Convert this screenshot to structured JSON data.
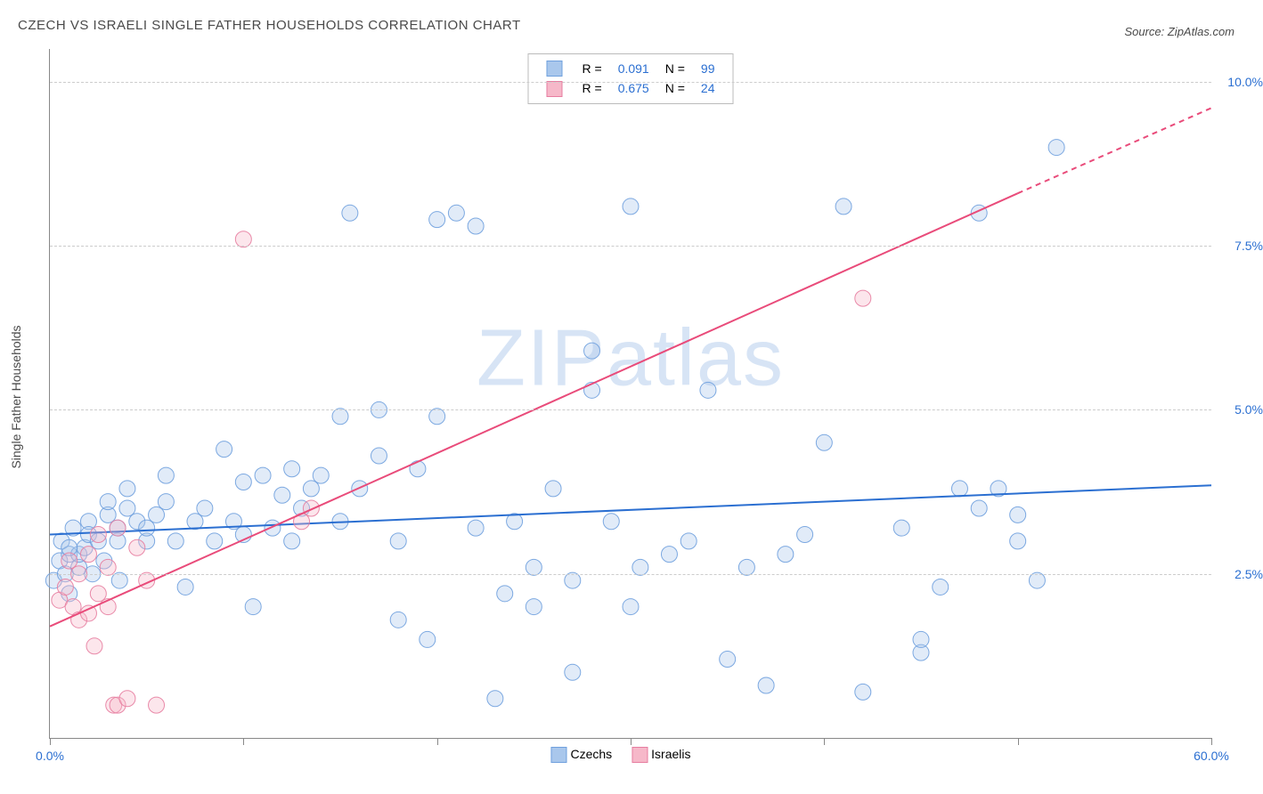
{
  "title": "CZECH VS ISRAELI SINGLE FATHER HOUSEHOLDS CORRELATION CHART",
  "source_label": "Source: ZipAtlas.com",
  "ylabel": "Single Father Households",
  "chart": {
    "type": "scatter",
    "xlim": [
      0,
      60
    ],
    "ylim": [
      0,
      10.5
    ],
    "x_tick_start": 0,
    "x_tick_end": 60,
    "y_ticks": [
      2.5,
      5.0,
      7.5,
      10.0
    ],
    "y_tick_labels": [
      "2.5%",
      "5.0%",
      "7.5%",
      "10.0%"
    ],
    "x_end_labels": [
      "0.0%",
      "60.0%"
    ],
    "x_minor_ticks": [
      0,
      10,
      20,
      30,
      40,
      50,
      60
    ],
    "axis_label_color": "#2b6fd1",
    "grid_color": "#cccccc",
    "background_color": "#ffffff",
    "marker_radius": 9,
    "marker_fill_opacity": 0.35,
    "marker_stroke_opacity": 0.9,
    "marker_stroke_width": 1,
    "line_width": 2,
    "title_fontsize": 15,
    "label_fontsize": 14,
    "watermark_text": "ZIPatlas",
    "watermark_color": "#b7cfee",
    "watermark_opacity": 0.55,
    "series": [
      {
        "name": "Czechs",
        "color_fill": "#a9c7ec",
        "color_stroke": "#6fa0de",
        "line_color": "#2b6fd1",
        "R": "0.091",
        "N": "99",
        "trend": {
          "x1": 0,
          "y1": 3.1,
          "x2": 60,
          "y2": 3.85
        },
        "points": [
          [
            0.2,
            2.4
          ],
          [
            0.5,
            2.7
          ],
          [
            0.6,
            3.0
          ],
          [
            0.8,
            2.5
          ],
          [
            1.0,
            2.8
          ],
          [
            1.0,
            2.2
          ],
          [
            1.2,
            3.2
          ],
          [
            1.5,
            2.6
          ],
          [
            1.5,
            2.8
          ],
          [
            1.8,
            2.9
          ],
          [
            2.0,
            3.3
          ],
          [
            2.0,
            3.1
          ],
          [
            2.2,
            2.5
          ],
          [
            2.5,
            3.0
          ],
          [
            2.8,
            2.7
          ],
          [
            3.0,
            3.4
          ],
          [
            3.0,
            3.6
          ],
          [
            3.5,
            3.0
          ],
          [
            3.5,
            3.2
          ],
          [
            3.6,
            2.4
          ],
          [
            4.0,
            3.5
          ],
          [
            4.0,
            3.8
          ],
          [
            4.5,
            3.3
          ],
          [
            5.0,
            3.0
          ],
          [
            5.0,
            3.2
          ],
          [
            5.5,
            3.4
          ],
          [
            6.0,
            3.6
          ],
          [
            6.0,
            4.0
          ],
          [
            6.5,
            3.0
          ],
          [
            7.0,
            2.3
          ],
          [
            7.5,
            3.3
          ],
          [
            8.0,
            3.5
          ],
          [
            8.5,
            3.0
          ],
          [
            9.0,
            4.4
          ],
          [
            9.5,
            3.3
          ],
          [
            10.0,
            3.1
          ],
          [
            10.0,
            3.9
          ],
          [
            10.5,
            2.0
          ],
          [
            11.0,
            4.0
          ],
          [
            11.5,
            3.2
          ],
          [
            12.0,
            3.7
          ],
          [
            12.5,
            3.0
          ],
          [
            12.5,
            4.1
          ],
          [
            13.0,
            3.5
          ],
          [
            13.5,
            3.8
          ],
          [
            14.0,
            4.0
          ],
          [
            15.0,
            4.9
          ],
          [
            15.0,
            3.3
          ],
          [
            15.5,
            8.0
          ],
          [
            16.0,
            3.8
          ],
          [
            17.0,
            4.3
          ],
          [
            17.0,
            5.0
          ],
          [
            18.0,
            1.8
          ],
          [
            18.0,
            3.0
          ],
          [
            19.0,
            4.1
          ],
          [
            19.5,
            1.5
          ],
          [
            20.0,
            4.9
          ],
          [
            20.0,
            7.9
          ],
          [
            21.0,
            8.0
          ],
          [
            22.0,
            7.8
          ],
          [
            22.0,
            3.2
          ],
          [
            23.0,
            0.6
          ],
          [
            23.5,
            2.2
          ],
          [
            24.0,
            3.3
          ],
          [
            25.0,
            2.0
          ],
          [
            25.0,
            2.6
          ],
          [
            26.0,
            3.8
          ],
          [
            27.0,
            1.0
          ],
          [
            27.0,
            2.4
          ],
          [
            28.0,
            5.9
          ],
          [
            28.0,
            5.3
          ],
          [
            29.0,
            3.3
          ],
          [
            30.0,
            2.0
          ],
          [
            30.0,
            8.1
          ],
          [
            30.5,
            2.6
          ],
          [
            32.0,
            2.8
          ],
          [
            33.0,
            3.0
          ],
          [
            34.0,
            5.3
          ],
          [
            35.0,
            1.2
          ],
          [
            36.0,
            2.6
          ],
          [
            37.0,
            0.8
          ],
          [
            38.0,
            2.8
          ],
          [
            39.0,
            3.1
          ],
          [
            40.0,
            4.5
          ],
          [
            41.0,
            8.1
          ],
          [
            42.0,
            0.7
          ],
          [
            44.0,
            3.2
          ],
          [
            45.0,
            1.3
          ],
          [
            45.0,
            1.5
          ],
          [
            46.0,
            2.3
          ],
          [
            47.0,
            3.8
          ],
          [
            48.0,
            3.5
          ],
          [
            49.0,
            3.8
          ],
          [
            50.0,
            3.0
          ],
          [
            50.0,
            3.4
          ],
          [
            51.0,
            2.4
          ],
          [
            52.0,
            9.0
          ],
          [
            48.0,
            8.0
          ],
          [
            1.0,
            2.9
          ]
        ]
      },
      {
        "name": "Israelis",
        "color_fill": "#f6b8c9",
        "color_stroke": "#e77da0",
        "line_color": "#e94b7a",
        "R": "0.675",
        "N": "24",
        "trend": {
          "x1": 0,
          "y1": 1.7,
          "x2": 50,
          "y2": 8.3
        },
        "trend_dash": {
          "x1": 50,
          "y1": 8.3,
          "x2": 60,
          "y2": 9.6
        },
        "points": [
          [
            0.5,
            2.1
          ],
          [
            0.8,
            2.3
          ],
          [
            1.0,
            2.7
          ],
          [
            1.2,
            2.0
          ],
          [
            1.5,
            1.8
          ],
          [
            1.5,
            2.5
          ],
          [
            2.0,
            1.9
          ],
          [
            2.0,
            2.8
          ],
          [
            2.3,
            1.4
          ],
          [
            2.5,
            3.1
          ],
          [
            2.5,
            2.2
          ],
          [
            3.0,
            2.0
          ],
          [
            3.0,
            2.6
          ],
          [
            3.3,
            0.5
          ],
          [
            3.5,
            3.2
          ],
          [
            3.5,
            0.5
          ],
          [
            4.0,
            0.6
          ],
          [
            4.5,
            2.9
          ],
          [
            5.0,
            2.4
          ],
          [
            5.5,
            0.5
          ],
          [
            10.0,
            7.6
          ],
          [
            13.0,
            3.3
          ],
          [
            13.5,
            3.5
          ],
          [
            42.0,
            6.7
          ]
        ]
      }
    ]
  },
  "legend_top": {
    "rows": [
      {
        "swatch_fill": "#a9c7ec",
        "swatch_stroke": "#6fa0de",
        "R_label": "R =",
        "R_val": "0.091",
        "N_label": "N =",
        "N_val": "99"
      },
      {
        "swatch_fill": "#f6b8c9",
        "swatch_stroke": "#e77da0",
        "R_label": "R =",
        "R_val": "0.675",
        "N_label": "N =",
        "N_val": "24"
      }
    ]
  },
  "legend_bottom": {
    "items": [
      {
        "swatch_fill": "#a9c7ec",
        "swatch_stroke": "#6fa0de",
        "label": "Czechs"
      },
      {
        "swatch_fill": "#f6b8c9",
        "swatch_stroke": "#e77da0",
        "label": "Israelis"
      }
    ]
  }
}
